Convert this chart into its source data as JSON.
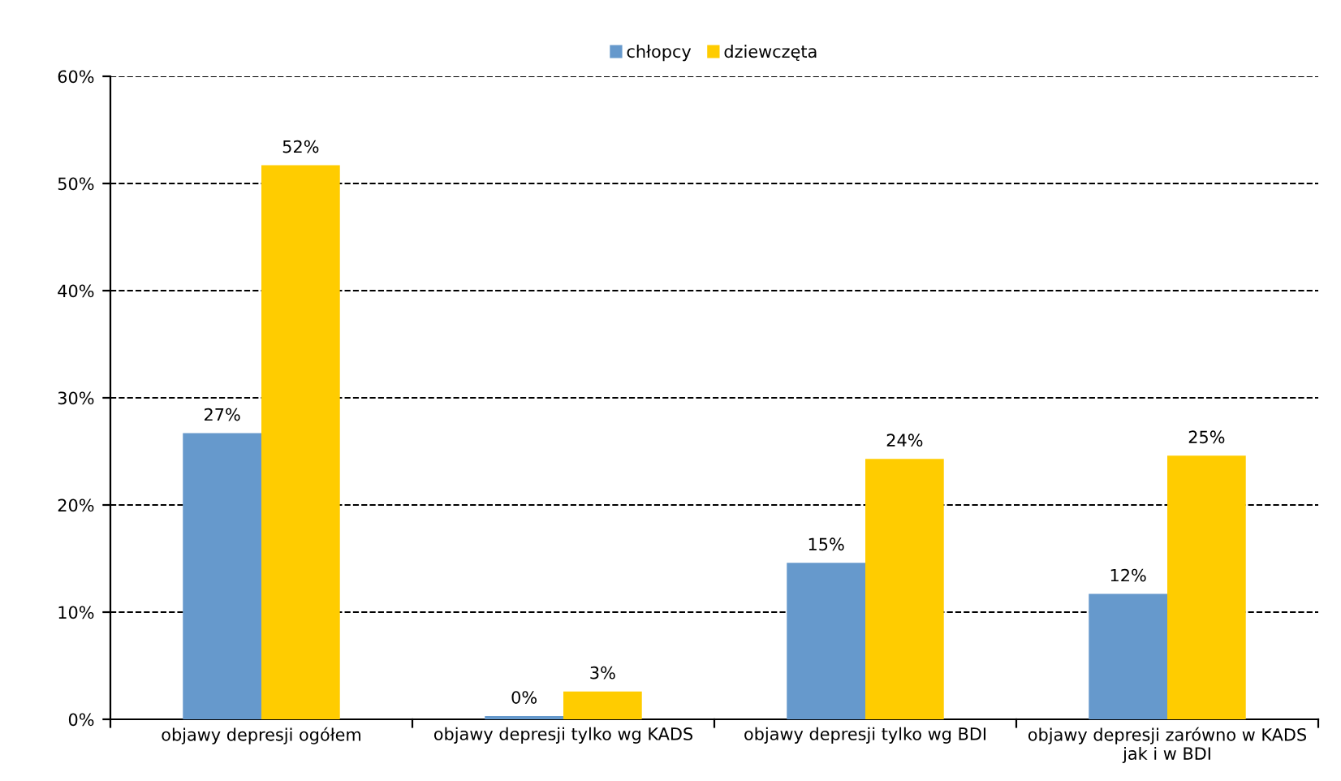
{
  "chart_data": {
    "type": "bar",
    "categories": [
      "objawy depresji ogółem",
      "objawy depresji tylko wg KADS",
      "objawy depresji tylko wg BDI",
      "objawy depresji zarówno w KADS\njak i w BDI"
    ],
    "series": [
      {
        "name": "chłopcy",
        "color": "#6699cc",
        "values": [
          26.7,
          0.3,
          14.6,
          11.7
        ],
        "value_labels": [
          "27%",
          "0%",
          "15%",
          "12%"
        ]
      },
      {
        "name": "dziewczęta",
        "color": "#ffcc00",
        "values": [
          51.7,
          2.6,
          24.3,
          24.6
        ],
        "value_labels": [
          "52%",
          "3%",
          "24%",
          "25%"
        ]
      }
    ],
    "ylim": [
      0,
      60
    ],
    "yticks": [
      {
        "value": 0,
        "label": "0%"
      },
      {
        "value": 10,
        "label": "10%"
      },
      {
        "value": 20,
        "label": "20%"
      },
      {
        "value": 30,
        "label": "30%"
      },
      {
        "value": 40,
        "label": "40%"
      },
      {
        "value": 50,
        "label": "50%"
      },
      {
        "value": 60,
        "label": "60%"
      }
    ],
    "grid": "y",
    "line_style": "dashed",
    "legend": "top"
  }
}
